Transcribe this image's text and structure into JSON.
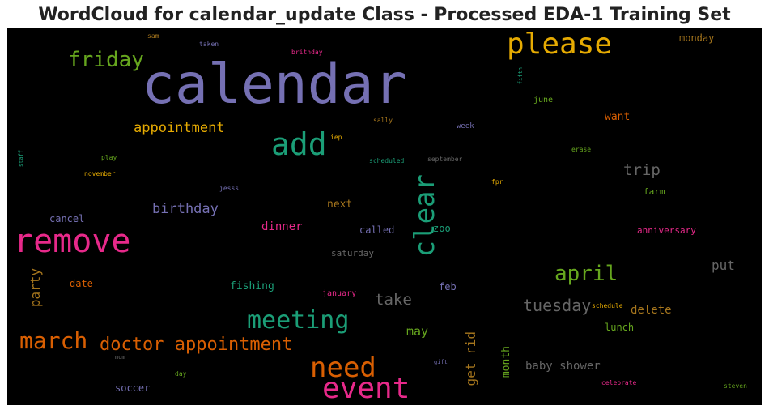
{
  "title": "WordCloud for calendar_update Class - Processed EDA-1 Training Set",
  "words": [
    {
      "text": "calendar",
      "color": "#7570b3",
      "size": 68,
      "rank": 1
    },
    {
      "text": "remove",
      "color": "#e7298a",
      "size": 40,
      "rank": 2
    },
    {
      "text": "please",
      "color": "#e6ab02",
      "size": 36,
      "rank": 3
    },
    {
      "text": "event",
      "color": "#e7298a",
      "size": 36,
      "rank": 4
    },
    {
      "text": "add",
      "color": "#1b9e77",
      "size": 38,
      "rank": 5
    },
    {
      "text": "need",
      "color": "#d95f02",
      "size": 34,
      "rank": 6
    },
    {
      "text": "clear",
      "color": "#1b9e77",
      "size": 34,
      "rank": 7
    },
    {
      "text": "meeting",
      "color": "#1b9e77",
      "size": 30,
      "rank": 8
    },
    {
      "text": "march",
      "color": "#d95f02",
      "size": 28,
      "rank": 9
    },
    {
      "text": "april",
      "color": "#66a61e",
      "size": 26,
      "rank": 10
    },
    {
      "text": "friday",
      "color": "#66a61e",
      "size": 26,
      "rank": 11
    },
    {
      "text": "doctor appointment",
      "color": "#d95f02",
      "size": 22,
      "rank": 12
    },
    {
      "text": "tuesday",
      "color": "#666666",
      "size": 20,
      "rank": 13
    },
    {
      "text": "appointment",
      "color": "#e6ab02",
      "size": 17,
      "rank": 14
    },
    {
      "text": "trip",
      "color": "#666666",
      "size": 19,
      "rank": 15
    },
    {
      "text": "take",
      "color": "#666666",
      "size": 19,
      "rank": 16
    },
    {
      "text": "birthday",
      "color": "#7570b3",
      "size": 17,
      "rank": 17
    },
    {
      "text": "party",
      "color": "#a6761d",
      "size": 16,
      "rank": 18
    },
    {
      "text": "get rid",
      "color": "#a6761d",
      "size": 16,
      "rank": 19
    },
    {
      "text": "put",
      "color": "#666666",
      "size": 16,
      "rank": 20
    },
    {
      "text": "delete",
      "color": "#a6761d",
      "size": 14,
      "rank": 21
    },
    {
      "text": "may",
      "color": "#66a61e",
      "size": 15,
      "rank": 22
    },
    {
      "text": "dinner",
      "color": "#e7298a",
      "size": 14,
      "rank": 23
    },
    {
      "text": "baby shower",
      "color": "#666666",
      "size": 14,
      "rank": 24
    },
    {
      "text": "month",
      "color": "#66a61e",
      "size": 13,
      "rank": 25
    },
    {
      "text": "next",
      "color": "#a6761d",
      "size": 13,
      "rank": 26
    },
    {
      "text": "fishing",
      "color": "#1b9e77",
      "size": 13,
      "rank": 27
    },
    {
      "text": "want",
      "color": "#d95f02",
      "size": 13,
      "rank": 28
    },
    {
      "text": "cancel",
      "color": "#7570b3",
      "size": 12,
      "rank": 29
    },
    {
      "text": "called",
      "color": "#7570b3",
      "size": 12,
      "rank": 30
    },
    {
      "text": "zoo",
      "color": "#1b9e77",
      "size": 12,
      "rank": 31
    },
    {
      "text": "feb",
      "color": "#7570b3",
      "size": 12,
      "rank": 32
    },
    {
      "text": "date",
      "color": "#d95f02",
      "size": 12,
      "rank": 33
    },
    {
      "text": "lunch",
      "color": "#66a61e",
      "size": 12,
      "rank": 34
    },
    {
      "text": "soccer",
      "color": "#7570b3",
      "size": 12,
      "rank": 35
    },
    {
      "text": "monday",
      "color": "#a6761d",
      "size": 12,
      "rank": 36
    },
    {
      "text": "farm",
      "color": "#66a61e",
      "size": 11,
      "rank": 37
    },
    {
      "text": "anniversary",
      "color": "#e7298a",
      "size": 11,
      "rank": 38
    },
    {
      "text": "saturday",
      "color": "#666666",
      "size": 11,
      "rank": 39
    },
    {
      "text": "june",
      "color": "#66a61e",
      "size": 10,
      "rank": 40
    },
    {
      "text": "january",
      "color": "#e7298a",
      "size": 10,
      "rank": 41
    },
    {
      "text": "week",
      "color": "#7570b3",
      "size": 9,
      "rank": 42
    },
    {
      "text": "sally",
      "color": "#a6761d",
      "size": 8,
      "rank": 43
    },
    {
      "text": "iep",
      "color": "#e6ab02",
      "size": 8,
      "rank": 44
    },
    {
      "text": "scheduled",
      "color": "#1b9e77",
      "size": 8,
      "rank": 45
    },
    {
      "text": "september",
      "color": "#666666",
      "size": 8,
      "rank": 46
    },
    {
      "text": "erase",
      "color": "#66a61e",
      "size": 8,
      "rank": 47
    },
    {
      "text": "fpr",
      "color": "#e6ab02",
      "size": 8,
      "rank": 48
    },
    {
      "text": "jesss",
      "color": "#7570b3",
      "size": 8,
      "rank": 49
    },
    {
      "text": "november",
      "color": "#e6ab02",
      "size": 8,
      "rank": 50
    },
    {
      "text": "play",
      "color": "#66a61e",
      "size": 8,
      "rank": 51
    },
    {
      "text": "staff",
      "color": "#1b9e77",
      "size": 7,
      "rank": 52
    },
    {
      "text": "sam",
      "color": "#a6761d",
      "size": 8,
      "rank": 53
    },
    {
      "text": "taken",
      "color": "#7570b3",
      "size": 8,
      "rank": 54
    },
    {
      "text": "brithday",
      "color": "#e7298a",
      "size": 8,
      "rank": 55
    },
    {
      "text": "fifth",
      "color": "#1b9e77",
      "size": 7,
      "rank": 56
    },
    {
      "text": "schedule",
      "color": "#e6ab02",
      "size": 8,
      "rank": 57
    },
    {
      "text": "gift",
      "color": "#7570b3",
      "size": 7,
      "rank": 58
    },
    {
      "text": "mom",
      "color": "#666666",
      "size": 7,
      "rank": 59
    },
    {
      "text": "day",
      "color": "#66a61e",
      "size": 8,
      "rank": 60
    },
    {
      "text": "celebrate",
      "color": "#e7298a",
      "size": 8,
      "rank": 61
    },
    {
      "text": "steven",
      "color": "#66a61e",
      "size": 8,
      "rank": 62
    }
  ]
}
